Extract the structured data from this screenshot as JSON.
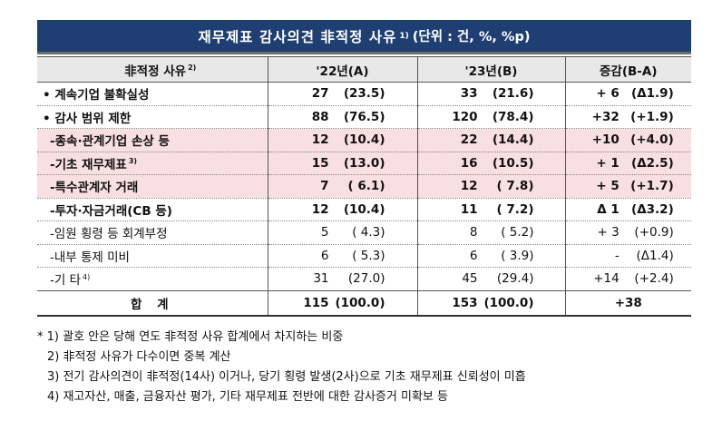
{
  "title": {
    "main": "재무제표 감사의견 非적정 사유",
    "sup": "1)",
    "unit": "(단위 : 건, %, %p)"
  },
  "header": {
    "col1": "非적정 사유",
    "col1_sup": "2)",
    "col2": "'22년(A)",
    "col3": "'23년(B)",
    "col4": "증감(B-A)"
  },
  "rows": [
    {
      "label": "• 계속기업 불확실성",
      "sup": "",
      "v22": "27",
      "p22": "(23.5)",
      "v23": "33",
      "p23": "(21.6)",
      "dv": "+ 6",
      "dp": "(Δ1.9)"
    },
    {
      "label": "• 감사 범위 제한",
      "sup": "",
      "v22": "88",
      "p22": "(76.5)",
      "v23": "120",
      "p23": "(78.4)",
      "dv": "+32",
      "dp": "(+1.9)"
    },
    {
      "label": "-종속·관계기업 손상 등",
      "sup": "",
      "v22": "12",
      "p22": "(10.4)",
      "v23": "22",
      "p23": "(14.4)",
      "dv": "+10",
      "dp": "(+4.0)"
    },
    {
      "label": "-기초 재무제표",
      "sup": "3)",
      "v22": "15",
      "p22": "(13.0)",
      "v23": "16",
      "p23": "(10.5)",
      "dv": "+ 1",
      "dp": "(Δ2.5)"
    },
    {
      "label": "-특수관계자 거래",
      "sup": "",
      "v22": "7",
      "p22": "( 6.1)",
      "v23": "12",
      "p23": "( 7.8)",
      "dv": "+ 5",
      "dp": "(+1.7)"
    },
    {
      "label": "-투자·자금거래(CB 등)",
      "sup": "",
      "v22": "12",
      "p22": "(10.4)",
      "v23": "11",
      "p23": "( 7.2)",
      "dv": "Δ 1",
      "dp": "(Δ3.2)"
    },
    {
      "label": "-임원 횡령 등 회계부정",
      "sup": "",
      "v22": "5",
      "p22": "( 4.3)",
      "v23": "8",
      "p23": "( 5.2)",
      "dv": "+ 3",
      "dp": "(+0.9)"
    },
    {
      "label": "-내부 통제 미비",
      "sup": "",
      "v22": "6",
      "p22": "( 5.3)",
      "v23": "6",
      "p23": "( 3.9)",
      "dv": "-",
      "dp": "(Δ1.4)"
    },
    {
      "label": "-기 타",
      "sup": "4)",
      "v22": "31",
      "p22": "(27.0)",
      "v23": "45",
      "p23": "(29.4)",
      "dv": "+14",
      "dp": "(+2.4)"
    }
  ],
  "total": {
    "label": "합 계",
    "v22": "115",
    "p22": "(100.0)",
    "v23": "153",
    "p23": "(100.0)",
    "dv": "+38"
  },
  "notes": [
    "1) 괄호 안은 당해 연도 非적정 사유 합계에서 차지하는 비중",
    "2) 非적정 사유가 다수이면 중복 계산",
    "3) 전기 감사의견이 非적정(14사) 이거나, 당기 횡령 발생(2사)으로 기초 재무제표 신뢰성이 미흡",
    "4) 재고자산, 매출, 금융자산 평가, 기타 재무제표 전반에 대한 감사증거 미확보 등"
  ]
}
